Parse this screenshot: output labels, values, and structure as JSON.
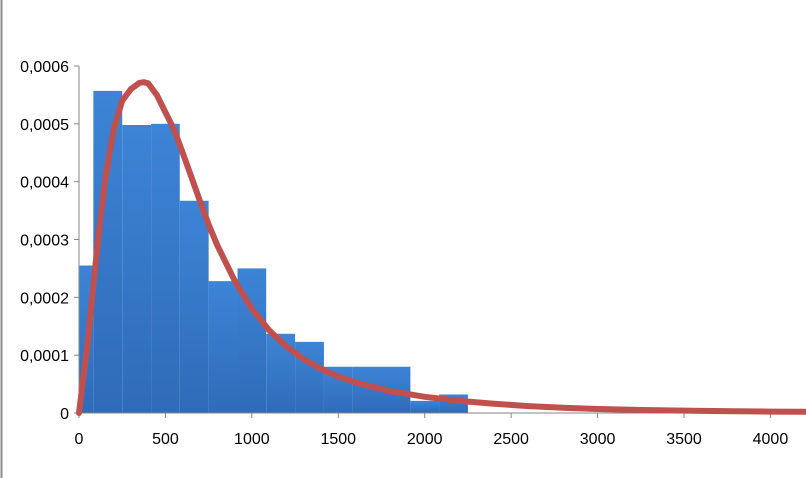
{
  "chart_data": {
    "type": "bar",
    "title": "",
    "xlabel": "",
    "ylabel": "",
    "xlim": [
      0,
      4200
    ],
    "ylim": [
      0,
      0.0006
    ],
    "grid": false,
    "bar_color": "#3b7fd0",
    "curve_color": "#c0504d",
    "x_ticks": [
      {
        "value": 0,
        "label": "0"
      },
      {
        "value": 500,
        "label": "500"
      },
      {
        "value": 1000,
        "label": "1000"
      },
      {
        "value": 1500,
        "label": "1500"
      },
      {
        "value": 2000,
        "label": "2000"
      },
      {
        "value": 2500,
        "label": "2500"
      },
      {
        "value": 3000,
        "label": "3000"
      },
      {
        "value": 3500,
        "label": "3500"
      },
      {
        "value": 4000,
        "label": "4000"
      }
    ],
    "y_ticks": [
      {
        "value": 0,
        "label": "0"
      },
      {
        "value": 0.0001,
        "label": "0,0001"
      },
      {
        "value": 0.0002,
        "label": "0,0002"
      },
      {
        "value": 0.0003,
        "label": "0,0003"
      },
      {
        "value": 0.0004,
        "label": "0,0004"
      },
      {
        "value": 0.0005,
        "label": "0,0005"
      },
      {
        "value": 0.0006,
        "label": "0,0006"
      }
    ],
    "histogram": {
      "bin_edges": [
        0,
        83,
        250,
        417,
        583,
        750,
        917,
        1083,
        1250,
        1417,
        1583,
        1917,
        2083,
        2250
      ],
      "values": [
        0.000255,
        0.000557,
        0.000498,
        0.0005,
        0.000367,
        0.000228,
        0.00025,
        0.000137,
        0.000123,
        8e-05,
        8e-05,
        2.1e-05,
        3.2e-05
      ]
    },
    "curve": {
      "x": [
        0,
        50,
        100,
        150,
        200,
        250,
        300,
        350,
        375,
        400,
        450,
        500,
        550,
        600,
        650,
        700,
        750,
        800,
        900,
        1000,
        1100,
        1200,
        1300,
        1400,
        1500,
        1600,
        1700,
        1800,
        1900,
        2000,
        2200,
        2400,
        2600,
        2800,
        3000,
        3200,
        3400,
        3600,
        3800,
        4000,
        4200
      ],
      "y": [
        0.0,
        0.00012,
        0.00027,
        0.0004,
        0.00049,
        0.00054,
        0.00056,
        0.000571,
        0.000572,
        0.00057,
        0.00055,
        0.00052,
        0.00049,
        0.00045,
        0.000408,
        0.000366,
        0.000326,
        0.00029,
        0.000229,
        0.00018,
        0.000143,
        0.000115,
        9.3e-05,
        7.6e-05,
        6.3e-05,
        5.3e-05,
        4.5e-05,
        3.8e-05,
        3.3e-05,
        2.8e-05,
        2.1e-05,
        1.6e-05,
        1.2e-05,
        9e-06,
        7e-06,
        5.5e-06,
        4.5e-06,
        3.7e-06,
        3e-06,
        2.5e-06,
        2e-06
      ]
    }
  }
}
